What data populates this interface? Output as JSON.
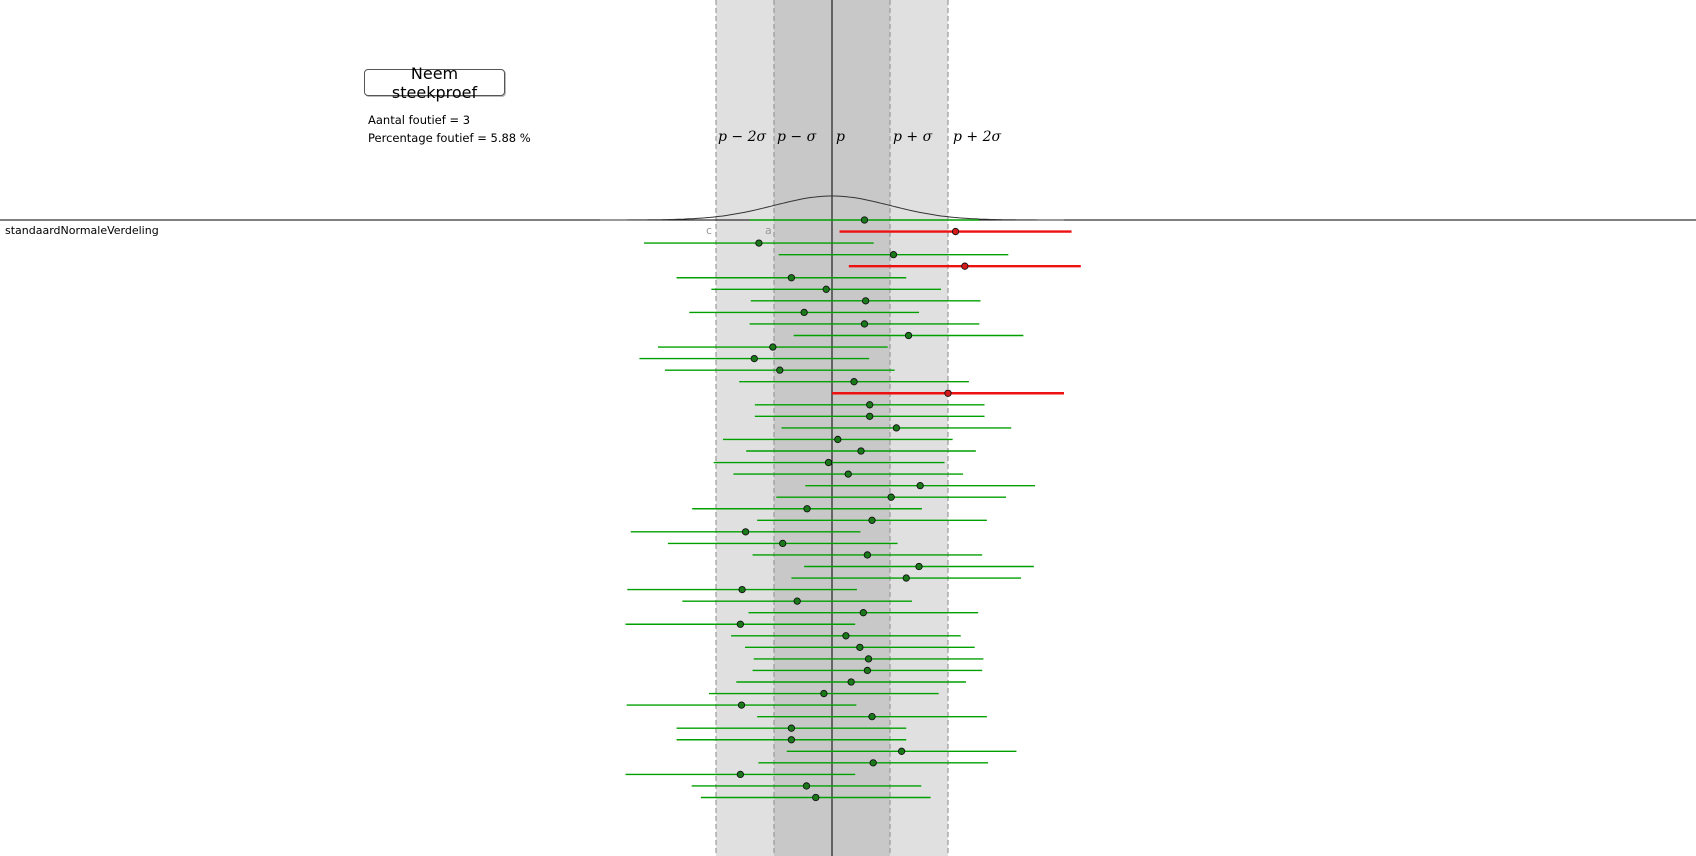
{
  "button": {
    "label": "Neem steekproef"
  },
  "stats": {
    "count_text": "Aantal foutief = 3",
    "percent_text": "Percentage foutief = 5.88 %"
  },
  "function_label": "standaardNormaleVerdeling",
  "point_labels": {
    "c": "c",
    "a": "a"
  },
  "band_labels": {
    "p_minus_2sigma": "p − 2σ",
    "p_minus_sigma": "p − σ",
    "p": "p",
    "p_plus_sigma": "p + σ",
    "p_plus_2sigma": "p + 2σ"
  },
  "colors": {
    "inner_band": "#c8c8c8",
    "outer_band": "#e0e0e0",
    "interval_ok": "#00a000",
    "interval_wrong": "#ee1111",
    "point_ok": "#1a7a1a",
    "point_wrong": "#d41c1c"
  },
  "simulation": {
    "p": 0,
    "sigma": 1,
    "samples": [
      {
        "center": 0.56,
        "low": -1.42,
        "high": 2.54,
        "wrong": false
      },
      {
        "center": 2.13,
        "low": 0.13,
        "high": 4.13,
        "wrong": true
      },
      {
        "center": -1.26,
        "low": -3.24,
        "high": 0.72,
        "wrong": false
      },
      {
        "center": 1.06,
        "low": -0.92,
        "high": 3.04,
        "wrong": false
      },
      {
        "center": 2.29,
        "low": 0.29,
        "high": 4.29,
        "wrong": true
      },
      {
        "center": -0.7,
        "low": -2.68,
        "high": 1.28,
        "wrong": false
      },
      {
        "center": -0.1,
        "low": -2.08,
        "high": 1.88,
        "wrong": false
      },
      {
        "center": 0.58,
        "low": -1.4,
        "high": 2.56,
        "wrong": false
      },
      {
        "center": -0.48,
        "low": -2.46,
        "high": 1.5,
        "wrong": false
      },
      {
        "center": 0.56,
        "low": -1.42,
        "high": 2.54,
        "wrong": false
      },
      {
        "center": 1.32,
        "low": -0.66,
        "high": 3.3,
        "wrong": false
      },
      {
        "center": -1.02,
        "low": -3.0,
        "high": 0.96,
        "wrong": false
      },
      {
        "center": -1.34,
        "low": -3.32,
        "high": 0.64,
        "wrong": false
      },
      {
        "center": -0.9,
        "low": -2.88,
        "high": 1.08,
        "wrong": false
      },
      {
        "center": 0.38,
        "low": -1.6,
        "high": 2.36,
        "wrong": false
      },
      {
        "center": 2.0,
        "low": 0.0,
        "high": 4.0,
        "wrong": true
      },
      {
        "center": 0.65,
        "low": -1.33,
        "high": 2.63,
        "wrong": false
      },
      {
        "center": 0.65,
        "low": -1.33,
        "high": 2.63,
        "wrong": false
      },
      {
        "center": 1.11,
        "low": -0.87,
        "high": 3.09,
        "wrong": false
      },
      {
        "center": 0.1,
        "low": -1.88,
        "high": 2.08,
        "wrong": false
      },
      {
        "center": 0.5,
        "low": -1.48,
        "high": 2.48,
        "wrong": false
      },
      {
        "center": -0.06,
        "low": -2.04,
        "high": 1.94,
        "wrong": false
      },
      {
        "center": 0.28,
        "low": -1.7,
        "high": 2.26,
        "wrong": false
      },
      {
        "center": 1.52,
        "low": -0.46,
        "high": 3.5,
        "wrong": false
      },
      {
        "center": 1.02,
        "low": -0.96,
        "high": 3.0,
        "wrong": false
      },
      {
        "center": -0.43,
        "low": -2.41,
        "high": 1.55,
        "wrong": false
      },
      {
        "center": 0.69,
        "low": -1.29,
        "high": 2.67,
        "wrong": false
      },
      {
        "center": -1.49,
        "low": -3.47,
        "high": 0.49,
        "wrong": false
      },
      {
        "center": -0.85,
        "low": -2.83,
        "high": 1.13,
        "wrong": false
      },
      {
        "center": 0.61,
        "low": -1.37,
        "high": 2.59,
        "wrong": false
      },
      {
        "center": 1.5,
        "low": -0.48,
        "high": 3.48,
        "wrong": false
      },
      {
        "center": 1.28,
        "low": -0.7,
        "high": 3.26,
        "wrong": false
      },
      {
        "center": -1.55,
        "low": -3.53,
        "high": 0.43,
        "wrong": false
      },
      {
        "center": -0.6,
        "low": -2.58,
        "high": 1.38,
        "wrong": false
      },
      {
        "center": 0.54,
        "low": -1.44,
        "high": 2.52,
        "wrong": false
      },
      {
        "center": -1.58,
        "low": -3.56,
        "high": 0.4,
        "wrong": false
      },
      {
        "center": 0.24,
        "low": -1.74,
        "high": 2.22,
        "wrong": false
      },
      {
        "center": 0.48,
        "low": -1.5,
        "high": 2.46,
        "wrong": false
      },
      {
        "center": 0.63,
        "low": -1.35,
        "high": 2.61,
        "wrong": false
      },
      {
        "center": 0.61,
        "low": -1.37,
        "high": 2.59,
        "wrong": false
      },
      {
        "center": 0.33,
        "low": -1.65,
        "high": 2.31,
        "wrong": false
      },
      {
        "center": -0.14,
        "low": -2.12,
        "high": 1.84,
        "wrong": false
      },
      {
        "center": -1.56,
        "low": -3.54,
        "high": 0.42,
        "wrong": false
      },
      {
        "center": 0.69,
        "low": -1.29,
        "high": 2.67,
        "wrong": false
      },
      {
        "center": -0.7,
        "low": -2.68,
        "high": 1.28,
        "wrong": false
      },
      {
        "center": -0.7,
        "low": -2.68,
        "high": 1.28,
        "wrong": false
      },
      {
        "center": 1.2,
        "low": -0.78,
        "high": 3.18,
        "wrong": false
      },
      {
        "center": 0.71,
        "low": -1.27,
        "high": 2.69,
        "wrong": false
      },
      {
        "center": -1.58,
        "low": -3.56,
        "high": 0.4,
        "wrong": false
      },
      {
        "center": -0.44,
        "low": -2.42,
        "high": 1.54,
        "wrong": false
      },
      {
        "center": -0.28,
        "low": -2.26,
        "high": 1.7,
        "wrong": false
      }
    ]
  }
}
